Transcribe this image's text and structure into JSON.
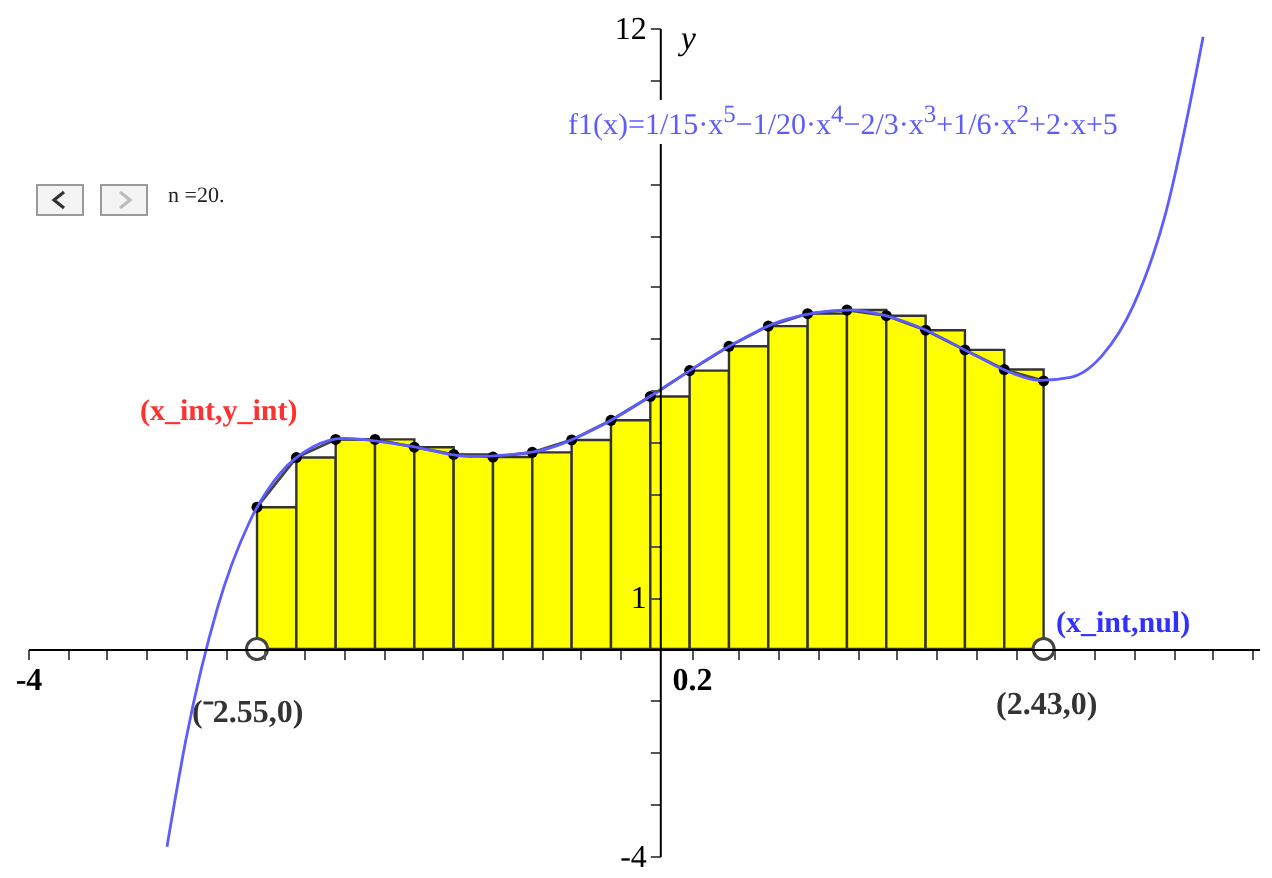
{
  "chart_data": {
    "type": "histogram",
    "ylabel": "y",
    "xlim": [
      -4,
      3.8
    ],
    "ylim": [
      -4,
      12
    ],
    "xticks": [
      -4,
      {
        "value": -3.75,
        "label": null
      },
      {
        "value": -3.5,
        "label": null
      },
      {
        "value": -3.25,
        "label": null
      },
      {
        "value": -3,
        "label": null
      },
      {
        "value": -2.75,
        "label": null
      },
      {
        "value": -2.5,
        "label": null
      },
      {
        "value": -2.25,
        "label": null
      },
      {
        "value": -2,
        "label": null
      },
      {
        "value": -1.75,
        "label": null
      },
      {
        "value": -1.5,
        "label": null
      },
      {
        "value": -1.25,
        "label": null
      },
      {
        "value": -1,
        "label": null
      },
      {
        "value": -0.75,
        "label": null
      },
      {
        "value": -0.5,
        "label": null
      },
      {
        "value": -0.25,
        "label": null
      },
      0.2,
      {
        "value": 0.5,
        "label": null
      },
      {
        "value": 0.75,
        "label": null
      },
      {
        "value": 1,
        "label": null
      },
      {
        "value": 1.25,
        "label": null
      },
      {
        "value": 1.5,
        "label": null
      },
      {
        "value": 1.75,
        "label": null
      },
      {
        "value": 2,
        "label": null
      },
      {
        "value": 2.25,
        "label": null
      },
      {
        "value": 2.5,
        "label": null
      },
      {
        "value": 2.75,
        "label": null
      },
      {
        "value": 3,
        "label": null
      },
      {
        "value": 3.25,
        "label": null
      },
      {
        "value": 3.5,
        "label": null
      },
      {
        "value": 3.75,
        "label": null
      }
    ],
    "yticks": [
      -4,
      {
        "value": -3,
        "label": null
      },
      {
        "value": -2,
        "label": null
      },
      {
        "value": -1,
        "label": null
      },
      1,
      {
        "value": 2,
        "label": null
      },
      {
        "value": 3,
        "label": null
      },
      {
        "value": 4,
        "label": null
      },
      {
        "value": 5,
        "label": null
      },
      {
        "value": 6,
        "label": null
      },
      {
        "value": 7,
        "label": null
      },
      {
        "value": 8,
        "label": null
      },
      {
        "value": 9,
        "label": null
      },
      {
        "value": 10,
        "label": null
      },
      {
        "value": 11,
        "label": null
      },
      12
    ],
    "annotations": [
      "n =20.",
      "(x_int,y_int)",
      "(x_int,nul)",
      "(⁻2.55,0)",
      "(2.43,0)"
    ],
    "series": [
      {
        "color": "#ffff00",
        "bins": [
          -2.55,
          -2.301,
          -2.052,
          -1.803,
          -1.554,
          -1.305,
          -1.056,
          -0.807,
          -0.558,
          -0.309,
          -0.06,
          0.189,
          0.438,
          0.687,
          0.936,
          1.185,
          1.434,
          1.683,
          1.932,
          2.181,
          2.43
        ],
        "values": [
          2.74,
          3.7,
          4.05,
          4.05,
          3.9,
          3.76,
          3.71,
          3.8,
          4.04,
          4.42,
          4.88,
          5.38,
          5.85,
          6.24,
          6.48,
          6.55,
          6.44,
          6.16,
          5.78,
          5.4
        ]
      },
      {
        "type": "scatter",
        "color": "#ffffff",
        "marker": "circle",
        "x": [
          -2.55,
          2.43
        ],
        "values": [
          0,
          0
        ]
      },
      {
        "type": "line",
        "color": "#444444",
        "marker": "circle",
        "x": [
          -2.55,
          -2.301,
          -2.052,
          -1.803,
          -1.554,
          -1.305,
          -1.056,
          -0.807,
          -0.558,
          -0.309,
          -0.06,
          0.189,
          0.438,
          0.687,
          0.936,
          1.185,
          1.434,
          1.683,
          1.932,
          2.181,
          2.43
        ],
        "values": [
          2.74,
          3.7,
          4.05,
          4.05,
          3.9,
          3.76,
          3.71,
          3.8,
          4.04,
          4.42,
          4.88,
          5.38,
          5.85,
          6.24,
          6.48,
          6.55,
          6.44,
          6.16,
          5.78,
          5.4,
          5.18
        ]
      },
      {
        "type": "line",
        "name": "f1(x)=1/15·x$^{5}$−1/20·x$^{4}$−2/3·x$^{3}$+1/6·x$^{2}$+2·x+5",
        "color": "#5c5cff",
        "x": [
          -3.12,
          -3,
          -2.8,
          -2.6,
          -2.4,
          -2.2,
          -2,
          -1.6,
          -1.2,
          -0.8,
          -0.4,
          0,
          0.4,
          0.8,
          1.2,
          1.6,
          2,
          2.2,
          2.4,
          2.6,
          2.8,
          3,
          3.2,
          3.44
        ],
        "values": [
          -3.82,
          -1.75,
          0.8,
          2.44,
          3.41,
          3.9,
          4.07,
          3.93,
          3.72,
          3.81,
          4.27,
          5,
          5.78,
          6.37,
          6.55,
          6.27,
          5.67,
          5.37,
          5.19,
          5.25,
          5.67,
          6.65,
          8.39,
          11.83
        ]
      }
    ]
  }
}
